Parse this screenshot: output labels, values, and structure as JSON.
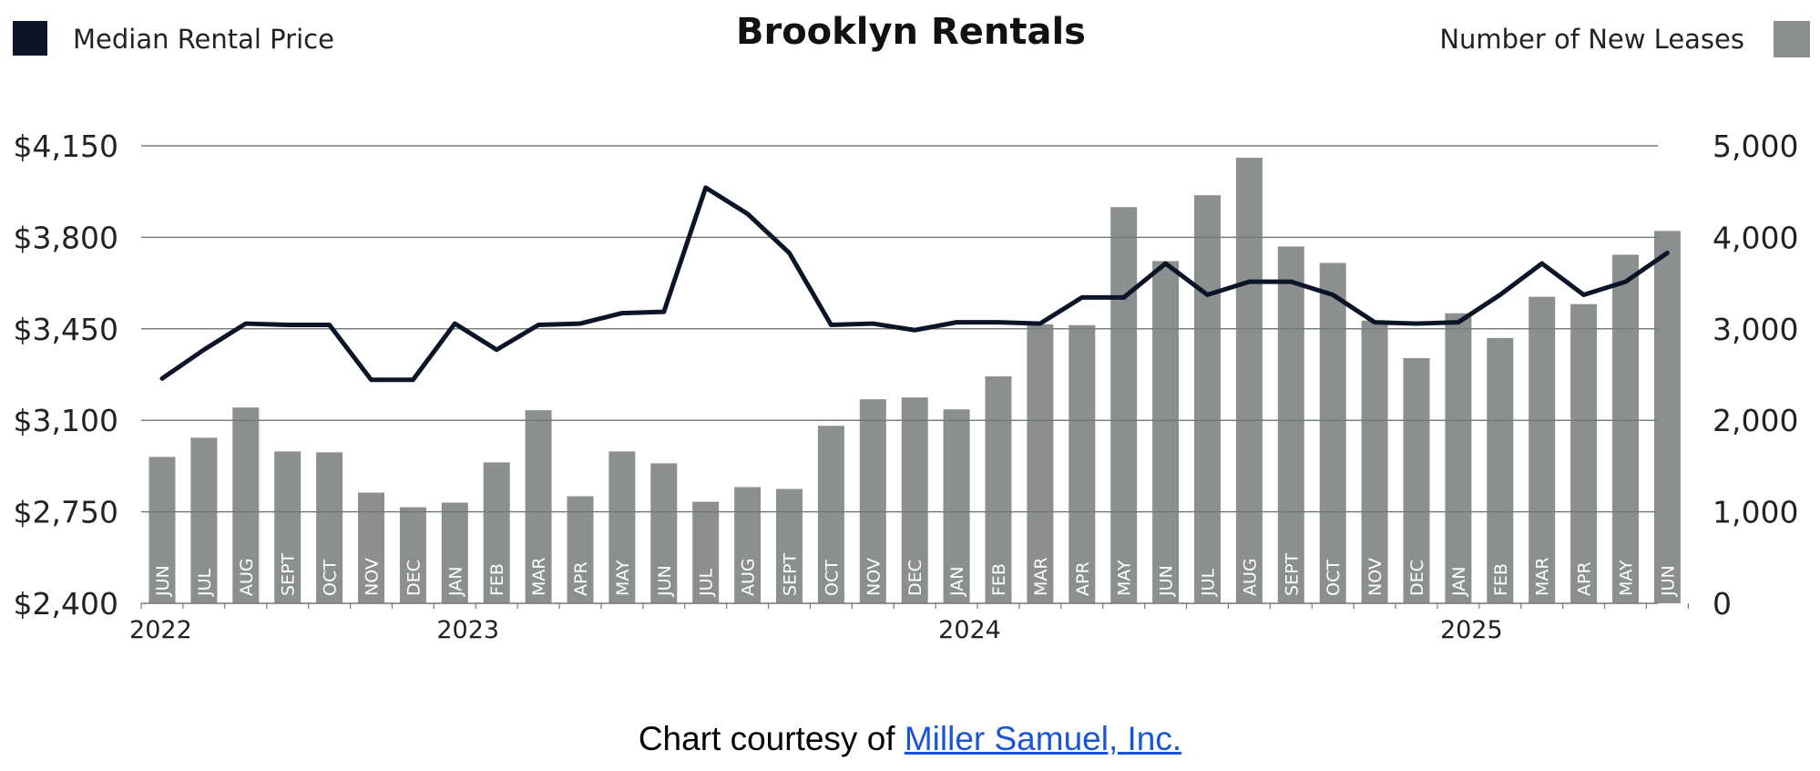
{
  "chart_data": {
    "type": "bar+line",
    "title": "Brooklyn Rentals",
    "legend": [
      {
        "label": "Median Rental Price",
        "color": "#0c1528",
        "position": "top-left"
      },
      {
        "label": "Number of New Leases",
        "color": "#8c8f8f",
        "position": "top-right"
      }
    ],
    "categories": [
      "JUN",
      "JUL",
      "AUG",
      "SEPT",
      "OCT",
      "NOV",
      "DEC",
      "JAN",
      "FEB",
      "MAR",
      "APR",
      "MAY",
      "JUN",
      "JUL",
      "AUG",
      "SEPT",
      "OCT",
      "NOV",
      "DEC",
      "JAN",
      "FEB",
      "MAR",
      "APR",
      "MAY",
      "JUN",
      "JUL",
      "AUG",
      "SEPT",
      "OCT",
      "NOV",
      "DEC",
      "JAN",
      "FEB",
      "MAR",
      "APR",
      "MAY",
      "JUN"
    ],
    "years": [
      {
        "label": "2022",
        "index": 0
      },
      {
        "label": "2023",
        "index": 7
      },
      {
        "label": "2024",
        "index": 19
      },
      {
        "label": "2025",
        "index": 31
      }
    ],
    "left_axis": {
      "ylim": [
        2400,
        4150
      ],
      "ticks": [
        "$2,400",
        "$2,750",
        "$3,100",
        "$3,450",
        "$3,800",
        "$4,150"
      ],
      "values": [
        2400,
        2750,
        3100,
        3450,
        3800,
        4150
      ]
    },
    "right_axis": {
      "ylim": [
        0,
        5000
      ],
      "ticks": [
        "0",
        "1,000",
        "2,000",
        "3,000",
        "4,000",
        "5,000"
      ],
      "values": [
        0,
        1000,
        2000,
        3000,
        4000,
        5000
      ]
    },
    "series": [
      {
        "name": "Number of New Leases",
        "type": "bar",
        "axis": "right",
        "color": "#8c8f8f",
        "values": [
          1600,
          1810,
          2140,
          1660,
          1650,
          1210,
          1050,
          1100,
          1540,
          2110,
          1170,
          1660,
          1530,
          1110,
          1270,
          1250,
          1940,
          2230,
          2250,
          2120,
          2480,
          3050,
          3040,
          4330,
          3740,
          4460,
          4870,
          3900,
          3720,
          3090,
          2680,
          3170,
          2900,
          3350,
          3270,
          3810,
          4070
        ]
      },
      {
        "name": "Median Rental Price",
        "type": "line",
        "axis": "left",
        "color": "#0c1528",
        "values": [
          3260,
          3370,
          3470,
          3465,
          3465,
          3255,
          3255,
          3470,
          3370,
          3465,
          3470,
          3510,
          3515,
          3990,
          3890,
          3740,
          3465,
          3470,
          3445,
          3475,
          3475,
          3470,
          3570,
          3570,
          3700,
          3580,
          3630,
          3630,
          3580,
          3475,
          3470,
          3475,
          3580,
          3700,
          3580,
          3630,
          3740
        ]
      }
    ],
    "grid": true
  },
  "credit": {
    "prefix": "Chart courtesy of ",
    "link_text": "Miller Samuel, Inc."
  }
}
